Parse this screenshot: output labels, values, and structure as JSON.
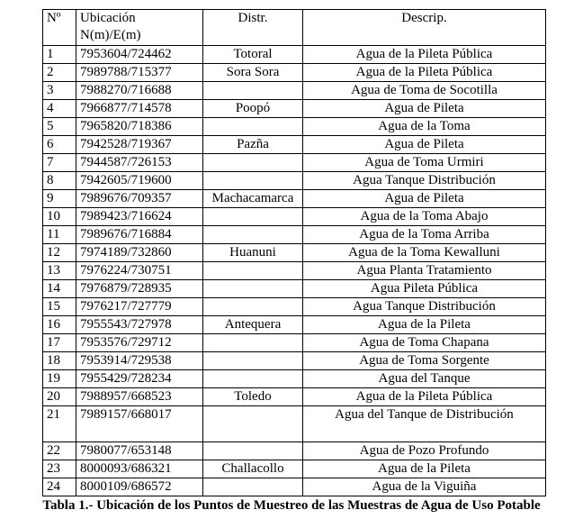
{
  "table": {
    "headers": [
      "Nº",
      "Ubicación N(m)/E(m)",
      "Distr.",
      "Descrip."
    ],
    "rows": [
      [
        "1",
        "7953604/724462",
        "Totoral",
        "Agua de la Pileta Pública"
      ],
      [
        "2",
        "7989788/715377",
        "Sora Sora",
        "Agua de la Pileta Pública"
      ],
      [
        "3",
        "7988270/716688",
        "",
        "Agua de Toma de Socotilla"
      ],
      [
        "4",
        "7966877/714578",
        "Poopó",
        "Agua de Pileta"
      ],
      [
        "5",
        "7965820/718386",
        "",
        "Agua de la Toma"
      ],
      [
        "6",
        "7942528/719367",
        "Pazña",
        "Agua de Pileta"
      ],
      [
        "7",
        "7944587/726153",
        "",
        "Agua de Toma Urmiri"
      ],
      [
        "8",
        "7942605/719600",
        "",
        "Agua Tanque Distribución"
      ],
      [
        "9",
        "7989676/709357",
        "Machacamarca",
        "Agua de Pileta"
      ],
      [
        "10",
        "7989423/716624",
        "",
        "Agua de la Toma Abajo"
      ],
      [
        "11",
        "7989676/716884",
        "",
        "Agua de la Toma Arriba"
      ],
      [
        "12",
        "7974189/732860",
        "Huanuni",
        "Agua de la Toma Kewalluni"
      ],
      [
        "13",
        "7976224/730751",
        "",
        "Agua Planta Tratamiento"
      ],
      [
        "14",
        "7976879/728935",
        "",
        "Agua Pileta Pública"
      ],
      [
        "15",
        "7976217/727779",
        "",
        "Agua Tanque Distribución"
      ],
      [
        "16",
        "7955543/727978",
        "Antequera",
        "Agua de la Pileta"
      ],
      [
        "17",
        "7953576/729712",
        "",
        "Agua de Toma Chapana"
      ],
      [
        "18",
        "7953914/729538",
        "",
        "Agua de Toma Sorgente"
      ],
      [
        "19",
        "7955429/728234",
        "",
        "Agua del Tanque"
      ],
      [
        "20",
        "7988957/668523",
        "Toledo",
        "Agua de la Pileta Pública"
      ],
      [
        "21",
        "7989157/668017",
        "",
        "Agua del Tanque de Distribución"
      ],
      [
        "22",
        "7980077/653148",
        "",
        "Agua de Pozo Profundo"
      ],
      [
        "23",
        "8000093/686321",
        "Challacollo",
        "Agua de la Pileta"
      ],
      [
        "24",
        "8000109/686572",
        "",
        "Agua de la Viguiña"
      ]
    ]
  },
  "caption": "Tabla 1.- Ubicación de los Puntos de Muestreo de las Muestras de Agua de Uso Potable"
}
